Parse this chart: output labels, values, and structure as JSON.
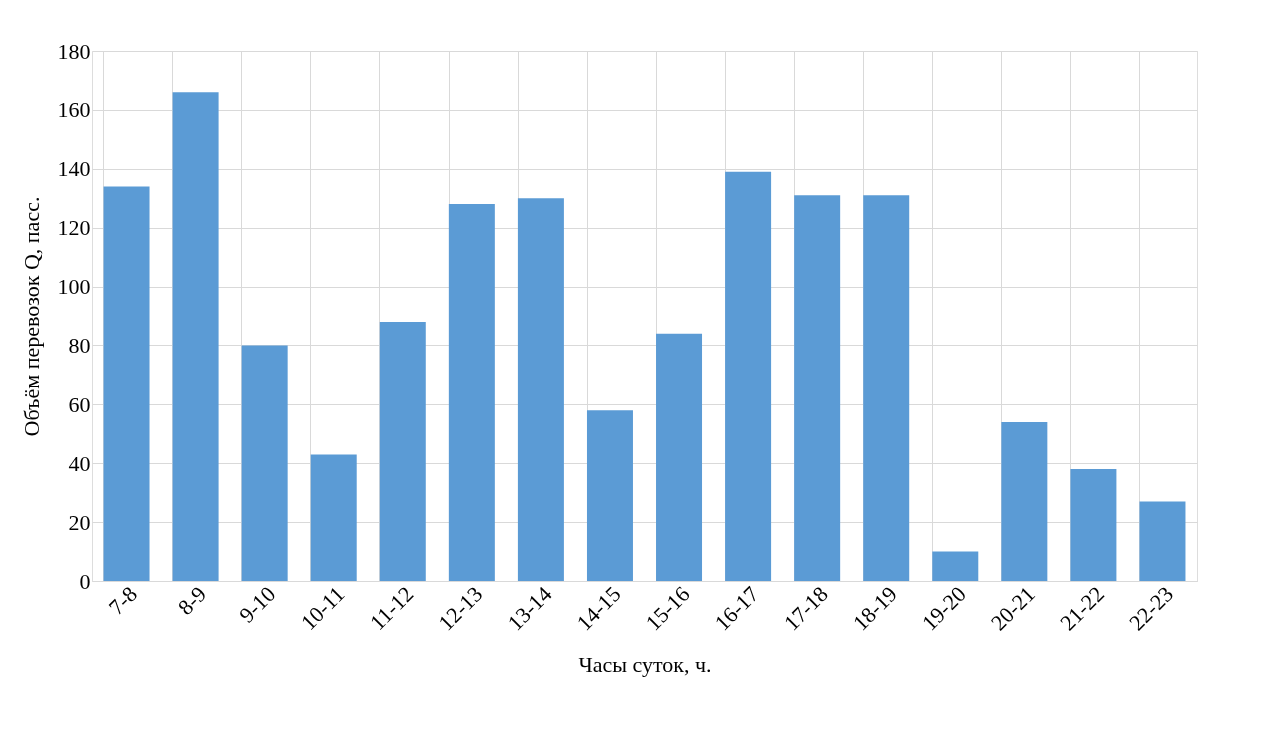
{
  "chart_data": {
    "type": "bar",
    "xlabel": "Часы суток, ч.",
    "ylabel": "Объём перевозок Q, пасс.",
    "categories": [
      "7-8",
      "8-9",
      "9-10",
      "10-11",
      "11-12",
      "12-13",
      "13-14",
      "14-15",
      "15-16",
      "16-17",
      "17-18",
      "18-19",
      "19-20",
      "20-21",
      "21-22",
      "22-23"
    ],
    "values": [
      134,
      166,
      80,
      43,
      88,
      128,
      130,
      58,
      84,
      139,
      131,
      131,
      10,
      54,
      38,
      27
    ],
    "color": "#5b9bd5",
    "ylim": [
      0,
      180
    ],
    "yticks": [
      0,
      20,
      40,
      60,
      80,
      100,
      120,
      140,
      160,
      180
    ],
    "grid": true
  }
}
